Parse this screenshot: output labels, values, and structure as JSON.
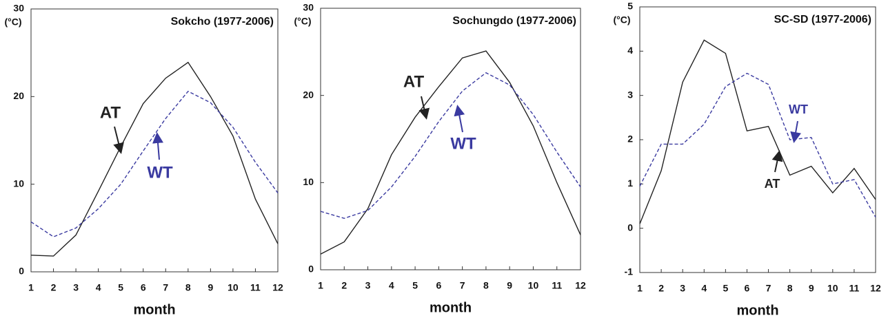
{
  "chart_data": [
    {
      "type": "line",
      "title": "Sokcho (1977-2006)",
      "ylabel": "(°C)",
      "xlabel": "month",
      "x": [
        1,
        2,
        3,
        4,
        5,
        6,
        7,
        8,
        9,
        10,
        11,
        12
      ],
      "xlim": [
        1,
        12
      ],
      "xticks": [
        1,
        2,
        3,
        4,
        5,
        6,
        7,
        8,
        9,
        10,
        11,
        12
      ],
      "ylim": [
        0,
        30
      ],
      "yticks": [
        0,
        10,
        20,
        30
      ],
      "series": [
        {
          "name": "AT",
          "color": "#222222",
          "style": "solid",
          "values": [
            1.9,
            1.8,
            4.2,
            9.2,
            14.3,
            19.2,
            22.1,
            23.9,
            20.0,
            15.5,
            8.3,
            3.2
          ]
        },
        {
          "name": "WT",
          "color": "#3a3aa0",
          "style": "dashed",
          "values": [
            5.7,
            4.0,
            5.0,
            7.2,
            10.0,
            13.8,
            17.5,
            20.6,
            19.3,
            16.5,
            12.5,
            9.0
          ]
        }
      ]
    },
    {
      "type": "line",
      "title": "Sochungdo (1977-2006)",
      "ylabel": "(°C)",
      "xlabel": "month",
      "x": [
        1,
        2,
        3,
        4,
        5,
        6,
        7,
        8,
        9,
        10,
        11,
        12
      ],
      "xlim": [
        1,
        12
      ],
      "xticks": [
        1,
        2,
        3,
        4,
        5,
        6,
        7,
        8,
        9,
        10,
        11,
        12
      ],
      "ylim": [
        0,
        30
      ],
      "yticks": [
        0,
        10,
        20,
        30
      ],
      "series": [
        {
          "name": "AT",
          "color": "#222222",
          "style": "solid",
          "values": [
            1.8,
            3.2,
            7.0,
            13.2,
            17.5,
            21.0,
            24.3,
            25.1,
            21.5,
            16.5,
            10.0,
            4.0
          ]
        },
        {
          "name": "WT",
          "color": "#3a3aa0",
          "style": "dashed",
          "values": [
            6.7,
            5.9,
            6.8,
            9.5,
            13.0,
            17.0,
            20.5,
            22.6,
            21.2,
            17.8,
            13.5,
            9.5
          ]
        }
      ]
    },
    {
      "type": "line",
      "title": "SC-SD (1977-2006)",
      "ylabel": "(°C)",
      "xlabel": "month",
      "x": [
        1,
        2,
        3,
        4,
        5,
        6,
        7,
        8,
        9,
        10,
        11,
        12
      ],
      "xlim": [
        1,
        12
      ],
      "xticks": [
        1,
        2,
        3,
        4,
        5,
        6,
        7,
        8,
        9,
        10,
        11,
        12
      ],
      "ylim": [
        -1,
        5
      ],
      "yticks": [
        -1,
        0,
        1,
        2,
        3,
        4,
        5
      ],
      "series": [
        {
          "name": "AT",
          "color": "#222222",
          "style": "solid",
          "values": [
            0.1,
            1.3,
            3.3,
            4.25,
            3.95,
            2.2,
            2.3,
            1.2,
            1.4,
            0.8,
            1.35,
            0.65
          ]
        },
        {
          "name": "WT",
          "color": "#3a3aa0",
          "style": "dashed",
          "values": [
            0.95,
            1.9,
            1.9,
            2.35,
            3.2,
            3.5,
            3.25,
            2.0,
            2.05,
            1.0,
            1.1,
            0.25
          ]
        }
      ]
    }
  ]
}
